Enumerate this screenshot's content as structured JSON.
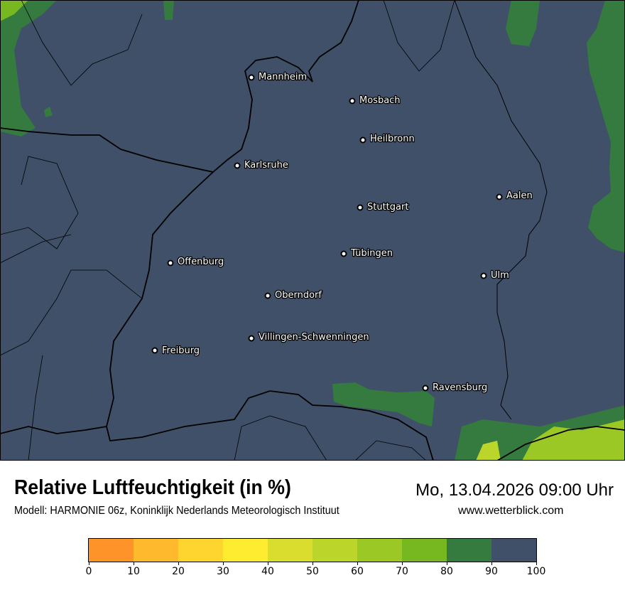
{
  "map": {
    "background_color": "#3f5068",
    "cities": [
      {
        "name": "Mannheim"
      },
      {
        "name": "Mosbach"
      },
      {
        "name": "Heilbronn"
      },
      {
        "name": "Karlsruhe"
      },
      {
        "name": "Aalen"
      },
      {
        "name": "Stuttgart"
      },
      {
        "name": "Tübingen"
      },
      {
        "name": "Offenburg"
      },
      {
        "name": "Ulm"
      },
      {
        "name": "Oberndorf"
      },
      {
        "name": "Villingen-Schwenningen"
      },
      {
        "name": "Freiburg"
      },
      {
        "name": "Ravensburg"
      }
    ]
  },
  "header": {
    "title": "Relative Luftfeuchtigkeit (in %)",
    "subtitle": "Modell: HARMONIE 06z, Koninklijk Nederlands Meteorologisch Instituut",
    "datetime": "Mo, 13.04.2026 09:00 Uhr",
    "website": "www.wetterblick.com"
  },
  "legend": {
    "ticks": [
      "0",
      "10",
      "20",
      "30",
      "40",
      "50",
      "60",
      "70",
      "80",
      "90",
      "100"
    ],
    "colors": [
      "#fe9429",
      "#feba2c",
      "#fed42e",
      "#feec31",
      "#dbdd2e",
      "#bcd52a",
      "#9cc825",
      "#77b820",
      "#357b3f",
      "#3f5068"
    ]
  }
}
